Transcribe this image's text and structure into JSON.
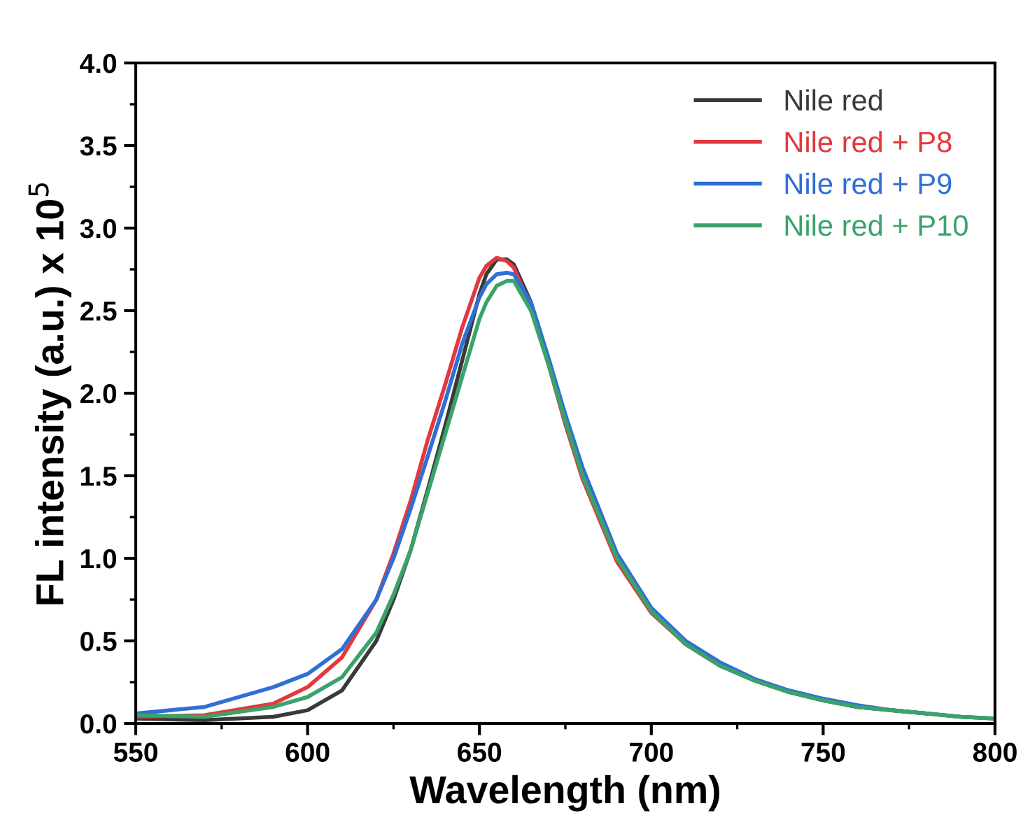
{
  "chart_data": {
    "type": "line",
    "xlabel": "Wavelength (nm)",
    "ylabel": "FL intensity (a.u.) x 10$^{5}$",
    "x": [
      550,
      570,
      590,
      600,
      610,
      620,
      625,
      630,
      635,
      640,
      645,
      650,
      652,
      655,
      658,
      660,
      665,
      670,
      675,
      680,
      690,
      700,
      710,
      720,
      730,
      740,
      750,
      760,
      770,
      780,
      790,
      800
    ],
    "series": [
      {
        "name": "Nile red",
        "color": "#3a3a3a",
        "values": [
          0.03,
          0.02,
          0.04,
          0.08,
          0.2,
          0.5,
          0.75,
          1.05,
          1.42,
          1.8,
          2.2,
          2.6,
          2.72,
          2.81,
          2.81,
          2.78,
          2.55,
          2.2,
          1.83,
          1.5,
          1.0,
          0.68,
          0.48,
          0.35,
          0.26,
          0.19,
          0.14,
          0.1,
          0.08,
          0.06,
          0.04,
          0.03
        ]
      },
      {
        "name": "Nile red + P8",
        "color": "#e0393e",
        "values": [
          0.04,
          0.05,
          0.12,
          0.22,
          0.4,
          0.75,
          1.03,
          1.35,
          1.72,
          2.05,
          2.4,
          2.7,
          2.77,
          2.82,
          2.8,
          2.76,
          2.52,
          2.18,
          1.81,
          1.48,
          0.98,
          0.67,
          0.48,
          0.35,
          null,
          null,
          null,
          null,
          null,
          null,
          null,
          null
        ]
      },
      {
        "name": "Nile red + P9",
        "color": "#2f6fd6",
        "values": [
          0.06,
          0.1,
          0.22,
          0.3,
          0.45,
          0.75,
          1.0,
          1.3,
          1.62,
          1.95,
          2.3,
          2.58,
          2.66,
          2.72,
          2.73,
          2.72,
          2.55,
          2.22,
          1.87,
          1.55,
          1.03,
          0.7,
          0.5,
          0.37,
          0.27,
          0.2,
          0.15,
          0.11,
          0.08,
          0.06,
          null,
          null
        ]
      },
      {
        "name": "Nile red + P10",
        "color": "#3aa36a",
        "values": [
          0.05,
          0.04,
          0.1,
          0.16,
          0.28,
          0.55,
          0.78,
          1.05,
          1.4,
          1.75,
          2.1,
          2.45,
          2.55,
          2.65,
          2.68,
          2.68,
          2.5,
          2.18,
          1.83,
          1.5,
          1.0,
          0.68,
          0.48,
          0.35,
          0.26,
          0.19,
          0.14,
          0.1,
          0.08,
          0.06,
          0.04,
          0.03
        ]
      }
    ],
    "xlim": [
      550,
      800
    ],
    "xticks": [
      550,
      600,
      650,
      700,
      750,
      800
    ],
    "ylim": [
      0,
      4.0
    ],
    "yticks": [
      {
        "value": 0,
        "label": "0.0"
      },
      0.5,
      {
        "value": 1,
        "label": "1.0"
      },
      1.5,
      {
        "value": 2,
        "label": "2.0"
      },
      2.5,
      {
        "value": 3,
        "label": "3.0"
      },
      3.5,
      {
        "value": 4,
        "label": "4.0"
      }
    ],
    "legend": "top right",
    "grid": false,
    "marker": "none",
    "line_style": "solid"
  }
}
